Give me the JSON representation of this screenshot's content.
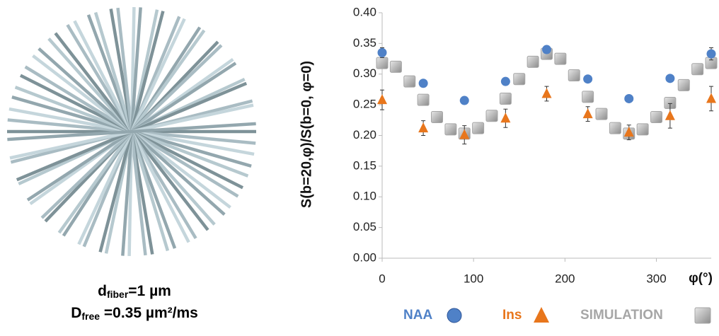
{
  "figure_labels": {
    "fiber": {
      "symbol": "d",
      "subscript": "fiber",
      "text": "=1 µm"
    },
    "free": {
      "symbol": "D",
      "subscript": "free",
      "text": " =0.35 µm²/ms"
    }
  },
  "chart_data": {
    "type": "scatter",
    "x_label": "φ(°)",
    "y_label": "S(b=20,φ)/S(b=0, φ=0)",
    "xlim": [
      0,
      360
    ],
    "xticks": [
      0,
      100,
      200,
      300
    ],
    "ylim": [
      0,
      0.4
    ],
    "yticks": [
      {
        "value": 0,
        "label": "0.00"
      },
      {
        "value": 0.05,
        "label": "0.05"
      },
      {
        "value": 0.1,
        "label": "0.10"
      },
      {
        "value": 0.15,
        "label": "0.15"
      },
      {
        "value": 0.2,
        "label": "0.20"
      },
      {
        "value": 0.25,
        "label": "0.25"
      },
      {
        "value": 0.3,
        "label": "0.30"
      },
      {
        "value": 0.35,
        "label": "0.35"
      },
      {
        "value": 0.4,
        "label": "0.40"
      }
    ],
    "legend": "bottom",
    "series": [
      {
        "name": "NAA",
        "color": "#4f81c7",
        "marker": "circle",
        "x": [
          0,
          45,
          90,
          135,
          180,
          225,
          270,
          315,
          360
        ],
        "values": [
          0.335,
          0.285,
          0.257,
          0.288,
          0.34,
          0.292,
          0.26,
          0.293,
          0.333
        ],
        "errors": [
          0.008,
          0.005,
          0.005,
          0.005,
          0.006,
          0.005,
          0.005,
          0.005,
          0.01
        ]
      },
      {
        "name": "Ins",
        "color": "#e8761c",
        "marker": "triangle",
        "x": [
          0,
          45,
          90,
          135,
          180,
          225,
          270,
          315,
          360
        ],
        "values": [
          0.258,
          0.212,
          0.201,
          0.228,
          0.268,
          0.235,
          0.205,
          0.232,
          0.26
        ],
        "errors": [
          0.016,
          0.012,
          0.015,
          0.015,
          0.012,
          0.012,
          0.012,
          0.02,
          0.02
        ]
      },
      {
        "name": "SIMULATION",
        "color": "#a6a6a6",
        "marker": "square",
        "x": [
          0,
          15,
          30,
          45,
          60,
          75,
          90,
          105,
          120,
          135,
          150,
          165,
          180,
          195,
          210,
          225,
          240,
          255,
          270,
          285,
          300,
          315,
          330,
          345,
          360
        ],
        "values": [
          0.318,
          0.312,
          0.288,
          0.258,
          0.23,
          0.21,
          0.203,
          0.212,
          0.232,
          0.26,
          0.292,
          0.32,
          0.333,
          0.325,
          0.298,
          0.263,
          0.235,
          0.212,
          0.203,
          0.21,
          0.23,
          0.253,
          0.282,
          0.308,
          0.318
        ]
      }
    ]
  }
}
